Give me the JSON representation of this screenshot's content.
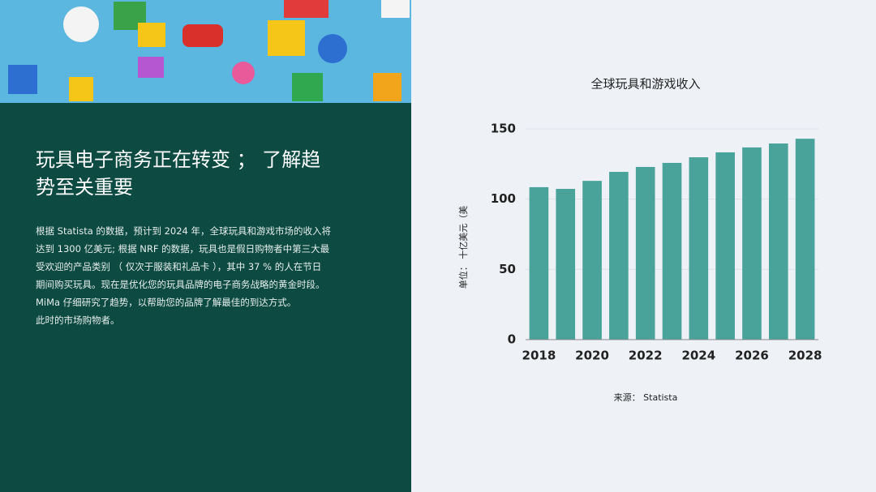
{
  "panel": {
    "title_lines": [
      "玩具电子商务正在转变 ； 了解趋",
      "势至关重要"
    ],
    "body_lines": [
      "根据 Statista 的数据，预计到 2024 年，全球玩具和游戏市场的收入将",
      "达到 1300 亿美元; 根据 NRF 的数据，玩具也是假日购物者中第三大最",
      "受欢迎的产品类别 （ 仅次于服装和礼品卡 ），其中 37 % 的人在节日",
      "期间购买玩具。现在是优化您的玩具品牌的电子商务战略的黄金时段。",
      "MiMa 仔细研究了趋势，以帮助您的品牌了解最佳的到达方式。",
      "此时的市场购物者。"
    ]
  },
  "chart_data": {
    "type": "bar",
    "title": "全球玩具和游戏收入",
    "y_label": "单位： 十亿美元（美",
    "source": "来源： Statista",
    "categories": [
      "2018",
      null,
      "2020",
      null,
      "2022",
      null,
      "2024",
      null,
      "2026",
      null,
      "2028"
    ],
    "values": [
      108.5,
      107.3,
      113,
      119.4,
      122.9,
      125.8,
      129.8,
      133.3,
      136.8,
      139.6,
      143
    ],
    "color": "#4aa39b",
    "ylim": [
      0,
      150
    ],
    "yticks": [
      0,
      50,
      100,
      150
    ],
    "grid": true
  }
}
